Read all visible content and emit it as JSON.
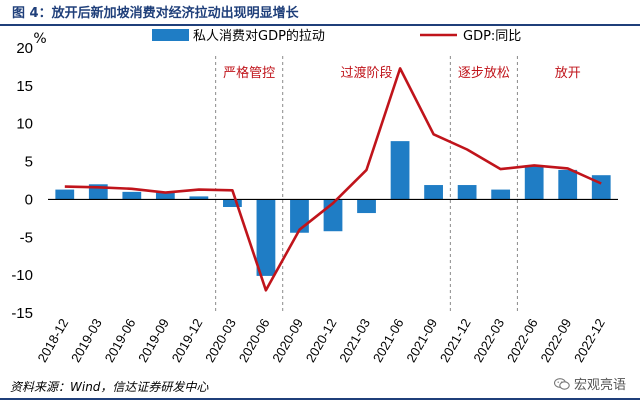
{
  "figure": {
    "title": "图 4：放开后新加坡消费对经济拉动出现明显增长",
    "source": "资料来源：Wind，信达证券研发中心",
    "watermark": "宏观亮语",
    "watermark_icon": "wechat-icon"
  },
  "chart_data": {
    "type": "bar",
    "unit_label": "%",
    "categories": [
      "2018-12",
      "2019-03",
      "2019-06",
      "2019-09",
      "2019-12",
      "2020-03",
      "2020-06",
      "2020-09",
      "2020-12",
      "2021-03",
      "2021-06",
      "2021-09",
      "2021-12",
      "2022-03",
      "2022-06",
      "2022-09",
      "2022-12"
    ],
    "series": [
      {
        "name": "私人消费对GDP的拉动",
        "kind": "bar",
        "color": "#1f7dc5",
        "values": [
          1.3,
          2.0,
          1.0,
          0.9,
          0.4,
          -1.0,
          -10.1,
          -4.4,
          -4.2,
          -1.8,
          7.7,
          1.9,
          1.9,
          1.3,
          4.5,
          3.9,
          3.2
        ]
      },
      {
        "name": "GDP:同比",
        "kind": "line",
        "color": "#c0141b",
        "values": [
          1.7,
          1.6,
          1.4,
          0.9,
          1.3,
          1.2,
          -12.0,
          -4.0,
          -0.5,
          3.9,
          17.3,
          8.6,
          6.6,
          4.0,
          4.5,
          4.1,
          2.1
        ]
      }
    ],
    "ylim": [
      -15,
      20
    ],
    "yticks": [
      -15,
      -10,
      -5,
      0,
      5,
      10,
      15,
      20
    ],
    "grid": false,
    "legend": "top",
    "phases": [
      {
        "label": "严格管控",
        "start": 4.5,
        "end": 6.5
      },
      {
        "label": "过渡阶段",
        "start": 6.5,
        "end": 11.5
      },
      {
        "label": "逐步放松",
        "start": 11.5,
        "end": 13.5
      },
      {
        "label": "放开",
        "start": 13.5,
        "end": 16.5
      }
    ],
    "phase_color": "#c0141b"
  }
}
